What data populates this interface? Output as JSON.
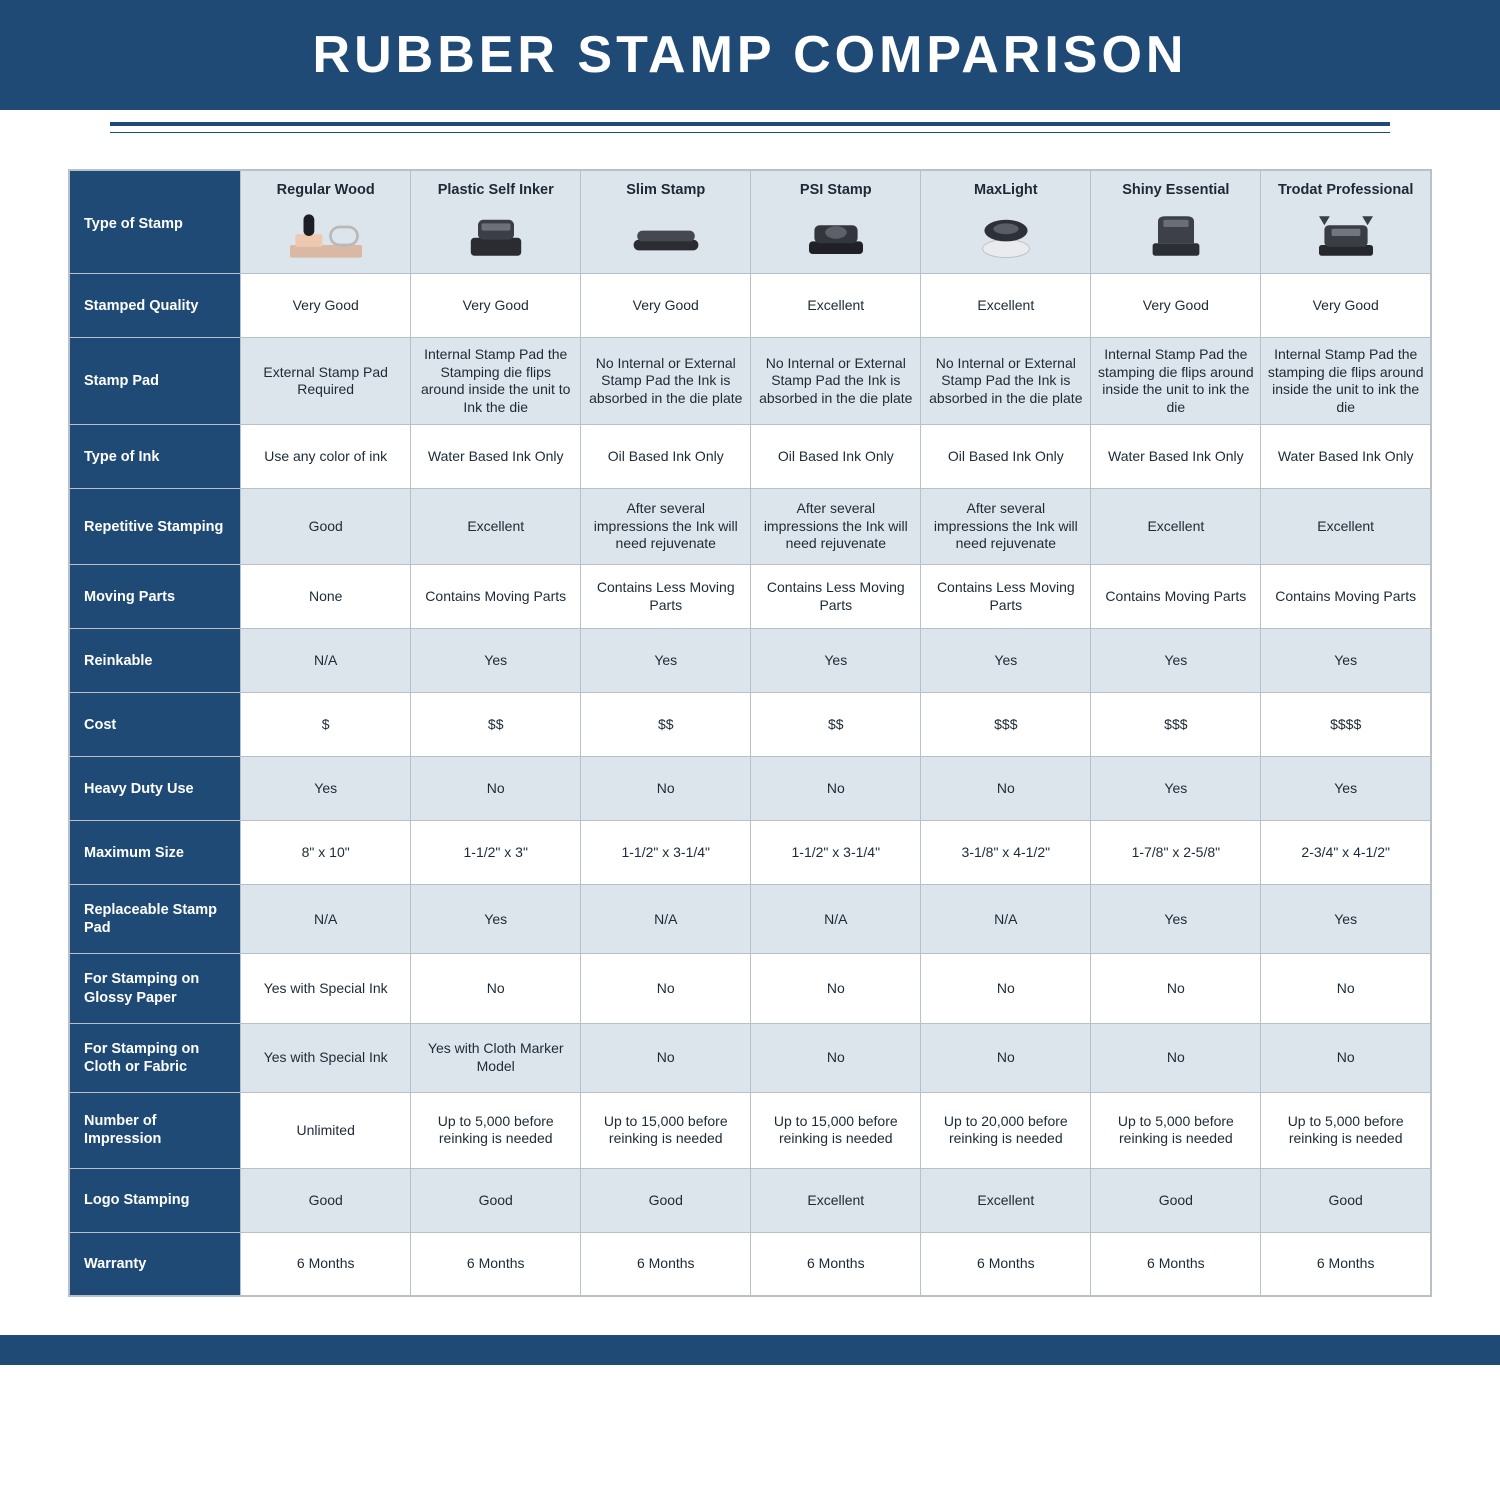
{
  "title": "RUBBER STAMP COMPARISON",
  "colors": {
    "navy": "#1f4a76",
    "cell_border": "#b8c1ca",
    "alt_row": "#dde5ec",
    "white": "#ffffff",
    "text": "#1d2a36"
  },
  "table": {
    "type": "table",
    "corner_label": "Type of Stamp",
    "columns": [
      "Regular Wood",
      "Plastic Self Inker",
      "Slim Stamp",
      "PSI Stamp",
      "MaxLight",
      "Shiny Essential",
      "Trodat Professional"
    ],
    "rows": [
      {
        "label": "Stamped Quality",
        "tall": false,
        "cells": [
          "Very Good",
          "Very Good",
          "Very Good",
          "Excellent",
          "Excellent",
          "Very Good",
          "Very Good"
        ]
      },
      {
        "label": "Stamp Pad",
        "tall": true,
        "cells": [
          "External Stamp Pad Required",
          "Internal Stamp Pad the Stamping die flips around inside the unit to Ink the die",
          "No Internal or External Stamp Pad the Ink is absorbed in the die plate",
          "No Internal or External Stamp Pad the Ink is absorbed in the die plate",
          "No Internal or External Stamp Pad the Ink is absorbed in the die plate",
          "Internal Stamp Pad the stamping die flips around inside the unit to ink the die",
          "Internal Stamp Pad the stamping die flips around inside the unit to ink the die"
        ]
      },
      {
        "label": "Type of Ink",
        "tall": false,
        "cells": [
          "Use any color of ink",
          "Water Based Ink Only",
          "Oil Based Ink Only",
          "Oil Based Ink Only",
          "Oil Based Ink Only",
          "Water Based Ink Only",
          "Water Based Ink Only"
        ]
      },
      {
        "label": "Repetitive Stamping",
        "tall": true,
        "cells": [
          "Good",
          "Excellent",
          "After several impressions the Ink will need rejuvenate",
          "After several impressions the Ink will need rejuvenate",
          "After several impressions the Ink will need rejuvenate",
          "Excellent",
          "Excellent"
        ]
      },
      {
        "label": "Moving Parts",
        "tall": false,
        "cells": [
          "None",
          "Contains Moving Parts",
          "Contains Less Moving Parts",
          "Contains Less Moving Parts",
          "Contains Less Moving Parts",
          "Contains Moving Parts",
          "Contains Moving Parts"
        ]
      },
      {
        "label": "Reinkable",
        "tall": false,
        "cells": [
          "N/A",
          "Yes",
          "Yes",
          "Yes",
          "Yes",
          "Yes",
          "Yes"
        ]
      },
      {
        "label": "Cost",
        "tall": false,
        "cells": [
          "$",
          "$$",
          "$$",
          "$$",
          "$$$",
          "$$$",
          "$$$$"
        ]
      },
      {
        "label": "Heavy Duty Use",
        "tall": false,
        "cells": [
          "Yes",
          "No",
          "No",
          "No",
          "No",
          "Yes",
          "Yes"
        ]
      },
      {
        "label": "Maximum Size",
        "tall": false,
        "cells": [
          "8\" x 10\"",
          "1-1/2\" x 3\"",
          "1-1/2\" x 3-1/4\"",
          "1-1/2\" x 3-1/4\"",
          "3-1/8\" x 4-1/2\"",
          "1-7/8\" x 2-5/8\"",
          "2-3/4\" x 4-1/2\""
        ]
      },
      {
        "label": "Replaceable Stamp Pad",
        "tall": false,
        "cells": [
          "N/A",
          "Yes",
          "N/A",
          "N/A",
          "N/A",
          "Yes",
          "Yes"
        ]
      },
      {
        "label": "For Stamping on Glossy Paper",
        "tall": false,
        "cells": [
          "Yes with Special Ink",
          "No",
          "No",
          "No",
          "No",
          "No",
          "No"
        ]
      },
      {
        "label": "For Stamping on Cloth or Fabric",
        "tall": false,
        "cells": [
          "Yes with Special Ink",
          "Yes with Cloth Marker Model",
          "No",
          "No",
          "No",
          "No",
          "No"
        ]
      },
      {
        "label": "Number of Impression",
        "tall": true,
        "cells": [
          "Unlimited",
          "Up to 5,000 before reinking is needed",
          "Up to 15,000 before reinking is needed",
          "Up to 15,000 before reinking is needed",
          "Up to 20,000 before reinking is needed",
          "Up to 5,000 before reinking is needed",
          "Up to 5,000 before reinking is needed"
        ]
      },
      {
        "label": "Logo Stamping",
        "tall": false,
        "cells": [
          "Good",
          "Good",
          "Good",
          "Excellent",
          "Excellent",
          "Good",
          "Good"
        ]
      },
      {
        "label": "Warranty",
        "tall": false,
        "cells": [
          "6 Months",
          "6 Months",
          "6 Months",
          "6 Months",
          "6 Months",
          "6 Months",
          "6 Months"
        ]
      }
    ]
  }
}
